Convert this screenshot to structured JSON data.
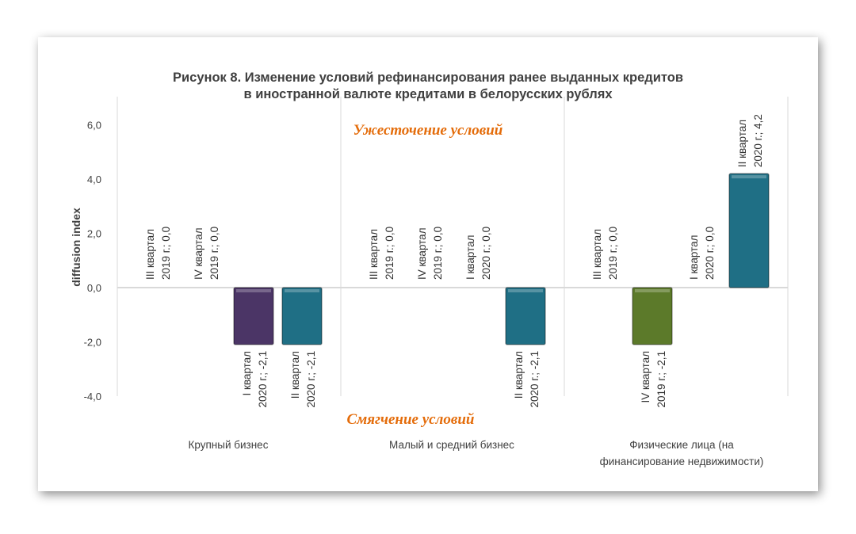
{
  "chart_data": {
    "type": "bar",
    "title": [
      "Рисунок 8. Изменение условий рефинансирования ранее выданных кредитов",
      "в иностранной валюте кредитами в белорусских рублях"
    ],
    "ylabel": "diffusion index",
    "ylim": [
      -4,
      6
    ],
    "yticks": [
      "-4,0",
      "-2,0",
      "0,0",
      "2,0",
      "4,0",
      "6,0"
    ],
    "yvalues": [
      -4,
      -2,
      0,
      2,
      4,
      6
    ],
    "annotations": {
      "top": "Ужесточение условий",
      "bottom": "Смягчение условий"
    },
    "categories": [
      "Крупный бизнес",
      "Малый и средний бизнес",
      "Физические лица (на финансирование недвижимости)"
    ],
    "category_lines": [
      [
        "Крупный бизнес"
      ],
      [
        "Малый и средний бизнес"
      ],
      [
        "Физические лица (на",
        "финансирование недвижимости)"
      ]
    ],
    "series": [
      {
        "name": "III квартал 2019 г.",
        "color": "#4e7f9e",
        "values": [
          0.0,
          0.0,
          0.0
        ],
        "labels": [
          [
            "III квартал",
            "2019 г.; 0,0"
          ],
          [
            "III квартал",
            "2019 г.; 0,0"
          ],
          [
            "III квартал",
            "2019 г.; 0,0"
          ]
        ]
      },
      {
        "name": "IV квартал 2019 г.",
        "color": "#5c7a2a",
        "values": [
          0.0,
          0.0,
          -2.1
        ],
        "labels": [
          [
            "IV квартал",
            "2019 г.; 0,0"
          ],
          [
            "IV квартал",
            "2019 г.; 0,0"
          ],
          [
            "IV квартал",
            "2019 г.; -2,1"
          ]
        ]
      },
      {
        "name": "I квартал 2020 г.",
        "color": "#4b3566",
        "values": [
          -2.1,
          0.0,
          0.0
        ],
        "labels": [
          [
            "I квартал",
            "2020 г.; -2,1"
          ],
          [
            "I квартал",
            "2020 г.; 0,0"
          ],
          [
            "I квартал",
            "2020 г.; 0,0"
          ]
        ]
      },
      {
        "name": "II квартал 2020 г.",
        "color": "#1f6f85",
        "values": [
          -2.1,
          -2.1,
          4.2
        ],
        "labels": [
          [
            "II квартал",
            "2020 г.; -2,1"
          ],
          [
            "II квартал",
            "2020 г.; -2,1"
          ],
          [
            "II квартал",
            "2020 г.; 4,2"
          ]
        ]
      }
    ]
  }
}
